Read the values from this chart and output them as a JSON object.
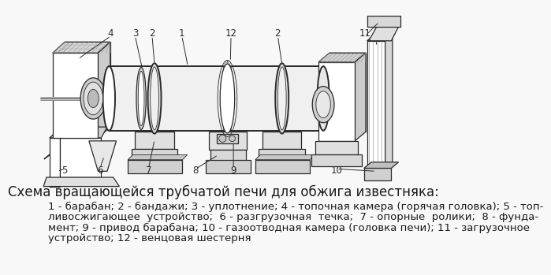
{
  "title": "Схема вращающейся трубчатой печи для обжига известняка:",
  "desc_line1": "1 - барабан; 2 - бандажи; 3 - уплотнение; 4 - топочная камера (горячая головка); 5 - топ-",
  "desc_line2": "ливосжигающее  устройство;  6 - разгрузочная  течка;  7 - опорные  ролики;  8 - фунда-",
  "desc_line3": "мент; 9 - привод барабана; 10 - газоотводная камера (головка печи); 11 - загрузочное",
  "desc_line4": "устройство; 12 - венцовая шестерня",
  "bg_color": "#f5f5f5",
  "text_color": "#1a1a1a",
  "title_fontsize": 12,
  "desc_fontsize": 9.5
}
